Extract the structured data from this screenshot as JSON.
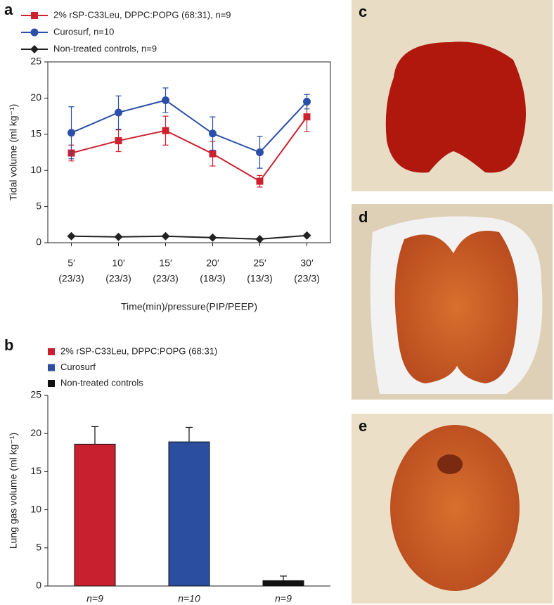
{
  "chart_data": [
    {
      "type": "line",
      "panel_label": "a",
      "categories": [
        "5′",
        "10′",
        "15′",
        "20′",
        "25′",
        "30′"
      ],
      "pressures": [
        "(23/3)",
        "(23/3)",
        "(23/3)",
        "(18/3)",
        "(13/3)",
        "(23/3)"
      ],
      "x_label": "Time(min)/pressure(PIP/PEEP)",
      "y_label": "Tidal volume (ml kg⁻¹)",
      "ylim": [
        0,
        25
      ],
      "yticks": [
        0,
        5,
        10,
        15,
        20,
        25
      ],
      "series": [
        {
          "name": "2% rSP-C33Leu, DPPC:POPG (68:31), n=9",
          "color": "#cc2230",
          "marker": "square",
          "values": [
            12.4,
            14.1,
            15.5,
            12.3,
            8.5,
            17.4
          ],
          "errors": [
            1.1,
            1.5,
            2.0,
            1.7,
            0.8,
            2.0
          ]
        },
        {
          "name": "Curosurf, n=10",
          "color": "#2a4fa8",
          "marker": "circle",
          "values": [
            15.2,
            18.0,
            19.7,
            15.1,
            12.5,
            19.5
          ],
          "errors": [
            3.6,
            2.3,
            1.7,
            2.3,
            2.2,
            1.0
          ]
        },
        {
          "name": "Non-treated controls, n=9",
          "color": "#222222",
          "marker": "diamond",
          "values": [
            0.9,
            0.8,
            0.9,
            0.7,
            0.5,
            1.0
          ]
        }
      ]
    },
    {
      "type": "bar",
      "panel_label": "b",
      "categories": [
        "n=9",
        "n=10",
        "n=9"
      ],
      "legend_labels": [
        "2% rSP-C33Leu, DPPC:POPG (68:31)",
        "Curosurf",
        "Non-treated controls"
      ],
      "colors": [
        "#c8202f",
        "#2c4ea0",
        "#111111"
      ],
      "y_label": "Lung gas volume (ml kg⁻¹)",
      "values": [
        18.6,
        18.9,
        0.7
      ],
      "errors": [
        2.3,
        1.9,
        0.6
      ],
      "ylim": [
        0,
        25
      ],
      "yticks": [
        0,
        5,
        10,
        15,
        20,
        25
      ]
    }
  ],
  "panels": [
    {
      "label": "c"
    },
    {
      "label": "d"
    },
    {
      "label": "e"
    }
  ]
}
